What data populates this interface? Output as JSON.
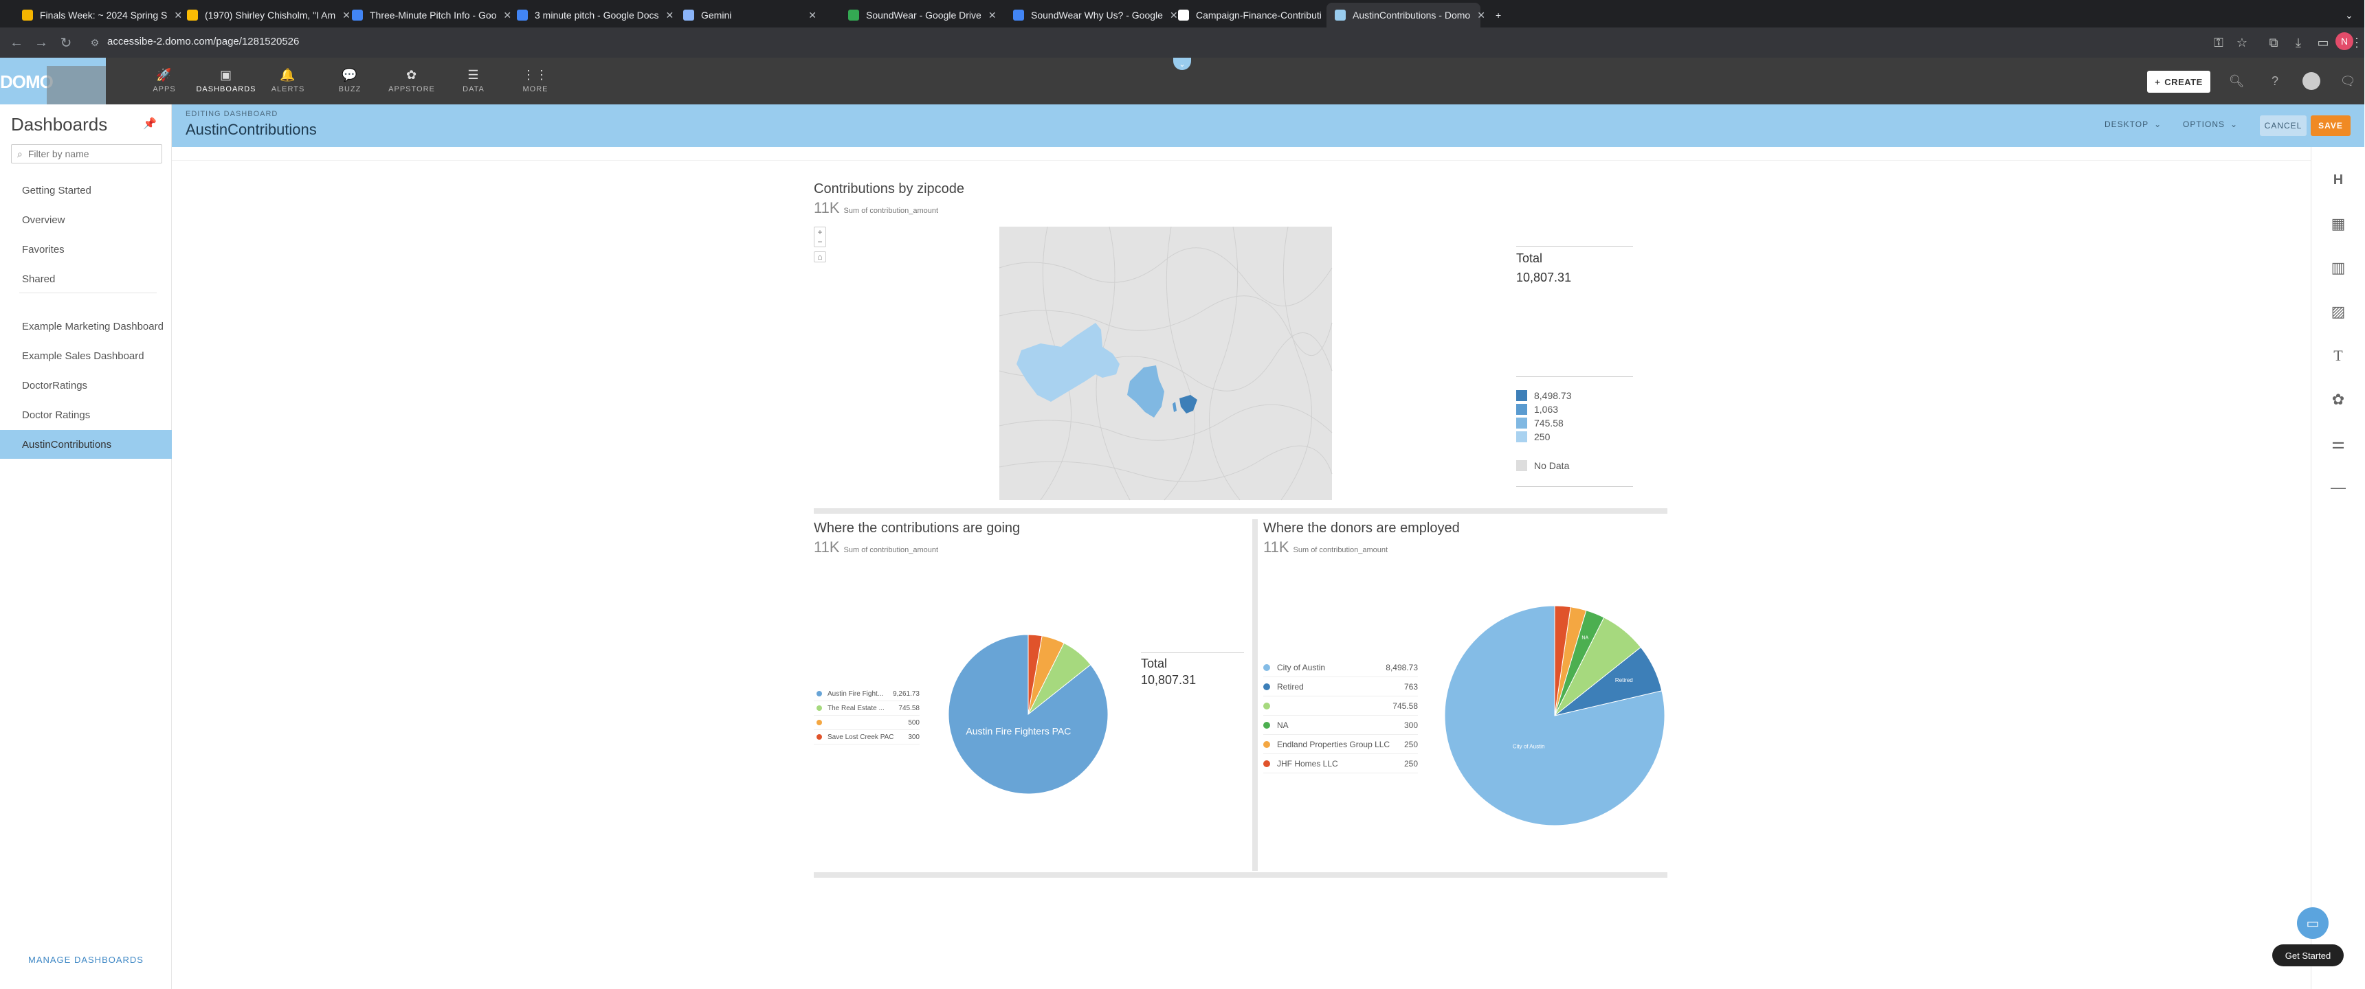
{
  "browser": {
    "tabs": [
      {
        "title": "Finals Week: ~ 2024 Spring S",
        "color": "#f4b400"
      },
      {
        "title": "(1970) Shirley Chisholm, \"I Am",
        "color": "#fbbc04"
      },
      {
        "title": "Three-Minute Pitch Info - Goo",
        "color": "#4285f4"
      },
      {
        "title": "3 minute pitch - Google Docs",
        "color": "#4285f4"
      },
      {
        "title": "Gemini",
        "color": "#8ab4f8"
      },
      {
        "title": "SoundWear - Google Drive",
        "color": "#34a853"
      },
      {
        "title": "SoundWear Why Us? - Google",
        "color": "#4285f4"
      },
      {
        "title": "Campaign-Finance-Contributi",
        "color": "#ffffff"
      },
      {
        "title": "AustinContributions - Domo",
        "color": "#99ccee"
      }
    ],
    "url": "accessibe-2.domo.com/page/1281520526",
    "profile_initial": "N"
  },
  "domo": {
    "nav": [
      {
        "label": "APPS",
        "icon": "🚀"
      },
      {
        "label": "DASHBOARDS",
        "icon": "▣"
      },
      {
        "label": "ALERTS",
        "icon": "🔔"
      },
      {
        "label": "BUZZ",
        "icon": "💬"
      },
      {
        "label": "APPSTORE",
        "icon": "✿"
      },
      {
        "label": "DATA",
        "icon": "☰"
      },
      {
        "label": "MORE",
        "icon": "⋮⋮"
      }
    ],
    "create_label": "CREATE",
    "logo_text": "DOMO"
  },
  "sidebar": {
    "title": "Dashboards",
    "filter_placeholder": "Filter by name",
    "items": [
      "Getting Started",
      "Overview",
      "Favorites",
      "Shared",
      "Example Marketing Dashboard",
      "Example Sales Dashboard",
      "DoctorRatings",
      "Doctor Ratings",
      "AustinContributions"
    ],
    "manage_label": "MANAGE DASHBOARDS"
  },
  "header": {
    "editing_label": "EDITING DASHBOARD",
    "dashboard_name": "AustinContributions",
    "desktop_label": "DESKTOP",
    "options_label": "OPTIONS",
    "cancel_label": "CANCEL",
    "save_label": "SAVE"
  },
  "cards": {
    "map": {
      "title": "Contributions by zipcode",
      "sum_value": "11K",
      "sum_label": "Sum of contribution_amount",
      "total_label": "Total",
      "total_value": "10,807.31",
      "legend": [
        {
          "label": "8,498.73",
          "color": "#3d7fb8"
        },
        {
          "label": "1,063",
          "color": "#5a9bd0"
        },
        {
          "label": "745.58",
          "color": "#80b8e2"
        },
        {
          "label": "250",
          "color": "#a9d2f0"
        }
      ],
      "no_data_label": "No Data",
      "no_data_color": "#dddddd"
    },
    "recipients": {
      "title": "Where the contributions are going",
      "sum_value": "11K",
      "sum_label": "Sum of contribution_amount",
      "total_label": "Total",
      "total_value": "10,807.31",
      "slice_label": "Austin Fire Fighters PAC"
    },
    "employers": {
      "title": "Where the donors are employed",
      "sum_value": "11K",
      "sum_label": "Sum of contribution_amount",
      "slice_labels": {
        "city": "City of Austin",
        "retired": "Retired",
        "na": "NA"
      }
    }
  },
  "chart_data": [
    {
      "type": "pie",
      "title": "Where the contributions are going",
      "slices": [
        {
          "label": "Austin Fire Fight...",
          "value": 9261.73,
          "color": "#68a4d6"
        },
        {
          "label": "The Real Estate ...",
          "value": 745.58,
          "color": "#a6d97e"
        },
        {
          "label": "",
          "value": 500,
          "color": "#f4a742"
        },
        {
          "label": "Save Lost Creek PAC",
          "value": 300,
          "color": "#e0532b"
        }
      ],
      "value_labels": [
        "9,261.73",
        "745.58",
        "500",
        "300"
      ]
    },
    {
      "type": "pie",
      "title": "Where the donors are employed",
      "slices": [
        {
          "label": "City of Austin",
          "value": 8498.73,
          "color": "#84bce6"
        },
        {
          "label": "Retired",
          "value": 763,
          "color": "#3d7fb8"
        },
        {
          "label": "",
          "value": 745.58,
          "color": "#a6d97e"
        },
        {
          "label": "NA",
          "value": 300,
          "color": "#4caf50"
        },
        {
          "label": "Endland Properties Group LLC",
          "value": 250,
          "color": "#f4a742"
        },
        {
          "label": "JHF Homes LLC",
          "value": 250,
          "color": "#e0532b"
        }
      ],
      "value_labels": [
        "8,498.73",
        "763",
        "745.58",
        "300",
        "250",
        "250"
      ]
    }
  ],
  "help": {
    "get_started": "Get Started"
  }
}
